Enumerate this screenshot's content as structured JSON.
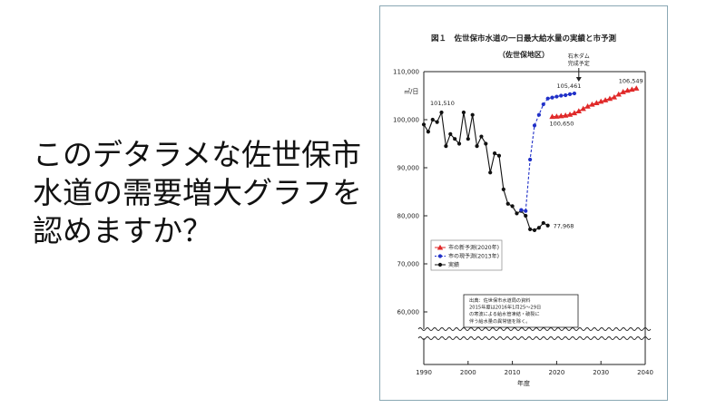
{
  "slide": {
    "lines": [
      "このデタラメな佐世保市",
      "水道の需要増大グラフを",
      "認めますか？"
    ]
  },
  "chart_data": {
    "type": "line",
    "title": "図１　佐世保市水道の一日最大給水量の実績と市予測",
    "subtitle": "（佐世保地区）",
    "xlabel": "年度",
    "ylabel": "㎥/日",
    "xlim": [
      1990,
      2040
    ],
    "ylim": [
      55000,
      110000
    ],
    "x_ticks": [
      "1990",
      "2000",
      "2010",
      "2020",
      "2030",
      "2040"
    ],
    "y_ticks": [
      {
        "value": 110000,
        "label": "110,000"
      },
      {
        "value": 100000,
        "label": "100,000"
      },
      {
        "value": 90000,
        "label": "90,000"
      },
      {
        "value": 80000,
        "label": "80,000"
      },
      {
        "value": 70000,
        "label": "70,000"
      },
      {
        "value": 60000,
        "label": "60,000"
      }
    ],
    "axis_break": true,
    "series": [
      {
        "name": "市の新予測(2020年)",
        "color": "#e02828",
        "marker": "triangle",
        "dashed": false,
        "x": [
          2019,
          2020,
          2021,
          2022,
          2023,
          2024,
          2025,
          2026,
          2027,
          2028,
          2029,
          2030,
          2031,
          2032,
          2033,
          2034,
          2035,
          2036,
          2037,
          2038
        ],
        "y": [
          100650,
          100700,
          100800,
          100900,
          101100,
          101400,
          101800,
          102300,
          102800,
          103200,
          103500,
          103800,
          104100,
          104400,
          104700,
          105300,
          105800,
          106100,
          106300,
          106549
        ]
      },
      {
        "name": "市の現予測(2013年)",
        "color": "#2030c8",
        "marker": "circle",
        "dashed": true,
        "x": [
          2012,
          2013,
          2014,
          2015,
          2016,
          2017,
          2018,
          2019,
          2020,
          2021,
          2022,
          2023,
          2024
        ],
        "y": [
          81200,
          81000,
          91700,
          98800,
          101000,
          103200,
          104400,
          104600,
          104800,
          105000,
          105100,
          105300,
          105461
        ]
      },
      {
        "name": "実績",
        "color": "#111111",
        "marker": "circle",
        "dashed": false,
        "x": [
          1990,
          1991,
          1992,
          1993,
          1994,
          1995,
          1996,
          1997,
          1998,
          1999,
          2000,
          2001,
          2002,
          2003,
          2004,
          2005,
          2006,
          2007,
          2008,
          2009,
          2010,
          2011,
          2012,
          2013,
          2014,
          2015,
          2016,
          2017,
          2018
        ],
        "y": [
          99000,
          97500,
          100000,
          99500,
          101510,
          94500,
          97000,
          96000,
          95000,
          101510,
          96000,
          101000,
          94500,
          96500,
          95000,
          89000,
          93000,
          92500,
          85500,
          82500,
          82000,
          80500,
          81000,
          80000,
          77200,
          77000,
          77500,
          78500,
          77968
        ]
      }
    ],
    "annotations": [
      {
        "text": "101,510",
        "x": 1995,
        "y": 101510
      },
      {
        "text": "105,461",
        "x": 2024,
        "y": 105461
      },
      {
        "text": "100,650",
        "x": 2019,
        "y": 100650
      },
      {
        "text": "106,549",
        "x": 2038,
        "y": 106549
      },
      {
        "text": "77,968",
        "x": 2018,
        "y": 77968
      }
    ],
    "dam_note": {
      "lines": [
        "石木ダム",
        "完成予定"
      ],
      "x": 2025
    },
    "legend_position": "lower-left",
    "source_note": [
      "出典：佐世保市水道局の資料",
      "2015年度は2016年1月25〜29日",
      "の寒波による給水管凍結・破裂に",
      "伴う給水量の異常値を除く。"
    ],
    "grid": false
  }
}
